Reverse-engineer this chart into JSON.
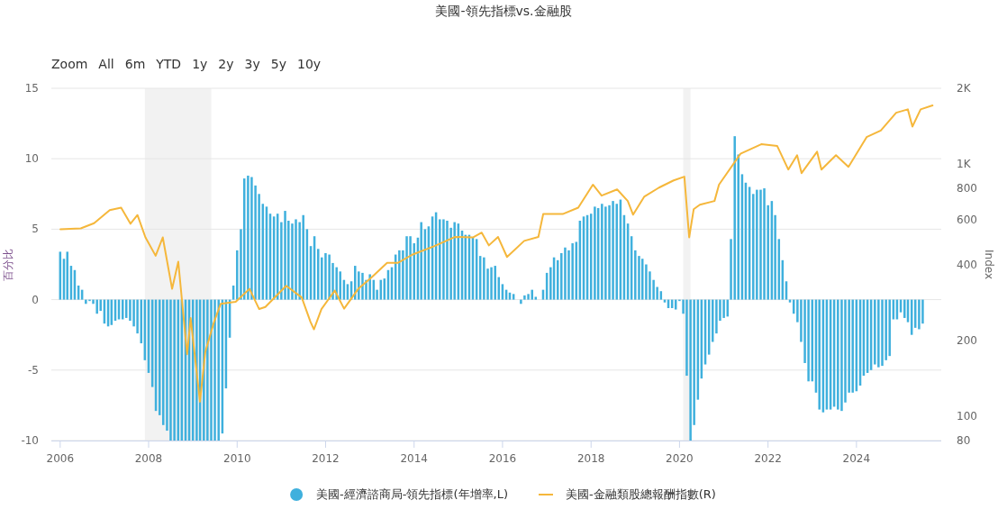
{
  "chart_data": {
    "type": "bar",
    "title": "美國-領先指標vs.金融股",
    "ylabel": "百分比",
    "y2label": "Index",
    "annotations": [
      "Zoom",
      "All",
      "6m",
      "YTD",
      "1y",
      "2y",
      "3y",
      "5y",
      "10y"
    ],
    "xlim": [
      "2005-10-20",
      "2025-12-01"
    ],
    "xticks": [
      "2006",
      "2008",
      "2010",
      "2012",
      "2014",
      "2016",
      "2018",
      "2020",
      "2022",
      "2024"
    ],
    "ylim": [
      -10,
      15
    ],
    "yticks": [
      -10,
      -5,
      0,
      5,
      10,
      15
    ],
    "y2lim": [
      80,
      2000
    ],
    "y2ticks": [
      80,
      100,
      200,
      400,
      600,
      800,
      {
        "value": 1000,
        "label": "1K"
      },
      {
        "value": 2000,
        "label": "2K"
      }
    ],
    "log": "y2",
    "grid": "y",
    "legend": "bottom",
    "bands": [
      {
        "axis": "x",
        "from": "2007-12",
        "to": "2009-06",
        "color": "#f2f2f2"
      },
      {
        "axis": "x",
        "from": "2020-02",
        "to": "2020-04",
        "color": "#f2f2f2"
      }
    ],
    "series": [
      {
        "name": "美國-經濟諮商局-領先指標(年增率,L)",
        "color": "#3fb0dd",
        "x": [
          "2006-01",
          "2006-02",
          "2006-03",
          "2006-04",
          "2006-05",
          "2006-06",
          "2006-07",
          "2006-08",
          "2006-09",
          "2006-10",
          "2006-11",
          "2006-12",
          "2007-01",
          "2007-02",
          "2007-03",
          "2007-04",
          "2007-05",
          "2007-06",
          "2007-07",
          "2007-08",
          "2007-09",
          "2007-10",
          "2007-11",
          "2007-12",
          "2008-01",
          "2008-02",
          "2008-03",
          "2008-04",
          "2008-05",
          "2008-06",
          "2008-07",
          "2008-08",
          "2008-09",
          "2008-10",
          "2008-11",
          "2008-12",
          "2009-01",
          "2009-02",
          "2009-03",
          "2009-04",
          "2009-05",
          "2009-06",
          "2009-07",
          "2009-08",
          "2009-09",
          "2009-10",
          "2009-11",
          "2009-12",
          "2010-01",
          "2010-02",
          "2010-03",
          "2010-04",
          "2010-05",
          "2010-06",
          "2010-07",
          "2010-08",
          "2010-09",
          "2010-10",
          "2010-11",
          "2010-12",
          "2011-01",
          "2011-02",
          "2011-03",
          "2011-04",
          "2011-05",
          "2011-06",
          "2011-07",
          "2011-08",
          "2011-09",
          "2011-10",
          "2011-11",
          "2011-12",
          "2012-01",
          "2012-02",
          "2012-03",
          "2012-04",
          "2012-05",
          "2012-06",
          "2012-07",
          "2012-08",
          "2012-09",
          "2012-10",
          "2012-11",
          "2012-12",
          "2013-01",
          "2013-02",
          "2013-03",
          "2013-04",
          "2013-05",
          "2013-06",
          "2013-07",
          "2013-08",
          "2013-09",
          "2013-10",
          "2013-11",
          "2013-12",
          "2014-01",
          "2014-02",
          "2014-03",
          "2014-04",
          "2014-05",
          "2014-06",
          "2014-07",
          "2014-08",
          "2014-09",
          "2014-10",
          "2014-11",
          "2014-12",
          "2015-01",
          "2015-02",
          "2015-03",
          "2015-04",
          "2015-05",
          "2015-06",
          "2015-07",
          "2015-08",
          "2015-09",
          "2015-10",
          "2015-11",
          "2015-12",
          "2016-01",
          "2016-02",
          "2016-03",
          "2016-04",
          "2016-05",
          "2016-06",
          "2016-07",
          "2016-08",
          "2016-09",
          "2016-10",
          "2016-11",
          "2016-12",
          "2017-01",
          "2017-02",
          "2017-03",
          "2017-04",
          "2017-05",
          "2017-06",
          "2017-07",
          "2017-08",
          "2017-09",
          "2017-10",
          "2017-11",
          "2017-12",
          "2018-01",
          "2018-02",
          "2018-03",
          "2018-04",
          "2018-05",
          "2018-06",
          "2018-07",
          "2018-08",
          "2018-09",
          "2018-10",
          "2018-11",
          "2018-12",
          "2019-01",
          "2019-02",
          "2019-03",
          "2019-04",
          "2019-05",
          "2019-06",
          "2019-07",
          "2019-08",
          "2019-09",
          "2019-10",
          "2019-11",
          "2019-12",
          "2020-01",
          "2020-02",
          "2020-03",
          "2020-04",
          "2020-05",
          "2020-06",
          "2020-07",
          "2020-08",
          "2020-09",
          "2020-10",
          "2020-11",
          "2020-12",
          "2021-01",
          "2021-02",
          "2021-03",
          "2021-04",
          "2021-05",
          "2021-06",
          "2021-07",
          "2021-08",
          "2021-09",
          "2021-10",
          "2021-11",
          "2021-12",
          "2022-01",
          "2022-02",
          "2022-03",
          "2022-04",
          "2022-05",
          "2022-06",
          "2022-07",
          "2022-08",
          "2022-09",
          "2022-10",
          "2022-11",
          "2022-12",
          "2023-01",
          "2023-02",
          "2023-03",
          "2023-04",
          "2023-05",
          "2023-06",
          "2023-07",
          "2023-08",
          "2023-09",
          "2023-10",
          "2023-11",
          "2023-12",
          "2024-01",
          "2024-02",
          "2024-03",
          "2024-04",
          "2024-05",
          "2024-06",
          "2024-07",
          "2024-08",
          "2024-09",
          "2024-10",
          "2024-11",
          "2024-12",
          "2025-01",
          "2025-02",
          "2025-03",
          "2025-04",
          "2025-05",
          "2025-06",
          "2025-07"
        ],
        "values": [
          3.4,
          2.9,
          3.4,
          2.4,
          2.1,
          1.0,
          0.7,
          -0.3,
          -0.1,
          -0.3,
          -1.0,
          -0.8,
          -1.7,
          -1.9,
          -1.8,
          -1.5,
          -1.4,
          -1.4,
          -1.3,
          -1.5,
          -1.9,
          -2.4,
          -3.1,
          -4.3,
          -5.2,
          -6.2,
          -7.9,
          -8.2,
          -8.9,
          -9.3,
          -10,
          -10,
          -10,
          -10,
          -10,
          -10,
          -10,
          -10,
          -10,
          -10,
          -10,
          -10,
          -10,
          -10,
          -9.5,
          -6.3,
          -2.7,
          1.0,
          3.5,
          5.0,
          8.6,
          8.8,
          8.7,
          8.1,
          7.5,
          6.8,
          6.6,
          6.1,
          5.9,
          6.1,
          5.5,
          6.3,
          5.6,
          5.4,
          5.7,
          5.5,
          6.0,
          5.0,
          3.8,
          4.5,
          3.6,
          3.0,
          3.3,
          3.2,
          2.6,
          2.3,
          2.0,
          1.4,
          1.1,
          1.3,
          2.4,
          2.0,
          1.9,
          1.4,
          1.8,
          1.4,
          0.7,
          1.4,
          1.5,
          2.1,
          2.3,
          3.2,
          3.5,
          3.5,
          4.5,
          4.5,
          4.0,
          4.4,
          5.5,
          5.0,
          5.2,
          5.9,
          6.2,
          5.7,
          5.7,
          5.6,
          5.1,
          5.5,
          5.4,
          4.9,
          4.6,
          4.6,
          4.4,
          4.3,
          3.1,
          3.0,
          2.2,
          2.3,
          2.4,
          1.6,
          1.1,
          0.7,
          0.5,
          0.4,
          0,
          -0.3,
          0.3,
          0.4,
          0.7,
          0.2,
          0,
          0.7,
          1.9,
          2.3,
          3.0,
          2.8,
          3.3,
          3.7,
          3.5,
          4.0,
          4.1,
          5.6,
          5.9,
          6.0,
          6.1,
          6.6,
          6.5,
          6.8,
          6.6,
          6.7,
          7.0,
          6.8,
          7.1,
          6.0,
          5.4,
          4.5,
          3.5,
          3.1,
          2.9,
          2.5,
          2.0,
          1.4,
          0.9,
          0.6,
          -0.2,
          -0.6,
          -0.6,
          -0.7,
          -0.1,
          -1.0,
          -5.4,
          -10,
          -8.9,
          -7.1,
          -5.6,
          -4.6,
          -3.9,
          -3.0,
          -2.4,
          -1.5,
          -1.3,
          -1.2,
          4.3,
          11.6,
          10.3,
          8.9,
          8.3,
          8.0,
          7.5,
          7.8,
          7.8,
          7.9,
          6.7,
          7.0,
          6.0,
          4.3,
          2.8,
          1.3,
          -0.2,
          -1.0,
          -1.6,
          -3.0,
          -4.5,
          -5.8,
          -5.8,
          -6.6,
          -7.8,
          -8.0,
          -7.8,
          -7.8,
          -7.6,
          -7.8,
          -7.9,
          -7.3,
          -6.6,
          -6.6,
          -6.5,
          -6.1,
          -5.4,
          -5.2,
          -5.0,
          -4.6,
          -4.8,
          -4.7,
          -4.3,
          -4.0,
          -1.4,
          -1.4,
          -0.9,
          -1.3,
          -1.6,
          -2.5,
          -2.0,
          -2.1,
          -1.7
        ]
      },
      {
        "name": "美國-金融類股總報酬指數(R)",
        "type": "line",
        "axis": "y2",
        "color": "#f5b73b",
        "x": [
          "2006-01-03",
          "2006-06-20",
          "2006-10-08",
          "2007-02-14",
          "2007-05-19",
          "2007-08-04",
          "2007-10-01",
          "2007-12-06",
          "2008-02-28",
          "2008-04-27",
          "2008-07-13",
          "2008-09-02",
          "2008-11-14",
          "2008-12-13",
          "2009-02-28",
          "2009-04-13",
          "2009-06-25",
          "2009-08-18",
          "2009-12-20",
          "2010-04-13",
          "2010-07-02",
          "2010-08-22",
          "2011-02-10",
          "2011-06-18",
          "2011-08-29",
          "2011-09-27",
          "2011-11-28",
          "2012-03-17",
          "2012-06-02",
          "2012-09-27",
          "2013-01-12",
          "2013-05-23",
          "2013-08-22",
          "2013-12-16",
          "2014-06-14",
          "2014-12-02",
          "2015-05-01",
          "2015-07-13",
          "2015-09-10",
          "2015-11-25",
          "2016-02-07",
          "2016-06-28",
          "2016-10-23",
          "2016-12-02",
          "2017-05-12",
          "2017-09-17",
          "2018-01-16",
          "2018-03-29",
          "2018-08-04",
          "2018-10-31",
          "2018-12-14",
          "2019-03-15",
          "2019-07-16",
          "2019-11-14",
          "2020-02-10",
          "2020-03-21",
          "2020-04-27",
          "2020-06-17",
          "2020-10-16",
          "2020-11-22",
          "2021-05-19",
          "2021-11-06",
          "2022-03-18",
          "2022-06-17",
          "2022-08-29",
          "2022-10-05",
          "2023-02-10",
          "2023-03-18",
          "2023-07-16",
          "2023-10-27",
          "2024-03-25",
          "2024-07-20",
          "2024-11-24",
          "2025-02-28",
          "2025-04-07",
          "2025-06-14",
          "2025-09-20"
        ],
        "values": [
          552,
          556,
          583,
          657,
          672,
          580,
          628,
          512,
          433,
          512,
          320,
          410,
          176,
          245,
          114,
          180,
          237,
          279,
          284,
          320,
          266,
          271,
          329,
          296,
          237,
          221,
          266,
          315,
          267,
          320,
          354,
          406,
          406,
          437,
          472,
          514,
          512,
          535,
          476,
          514,
          428,
          496,
          514,
          634,
          634,
          672,
          829,
          750,
          794,
          714,
          630,
          742,
          807,
          862,
          892,
          512,
          662,
          690,
          714,
          829,
          1100,
          1200,
          1180,
          952,
          1085,
          921,
          1120,
          952,
          1085,
          976,
          1280,
          1360,
          1600,
          1650,
          1410,
          1650,
          1710
        ]
      }
    ]
  }
}
